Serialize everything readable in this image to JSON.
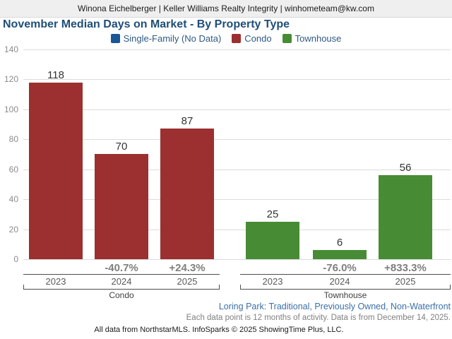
{
  "header": {
    "agent_line": "Winona Eichelberger | Keller Williams Realty Integrity | winhometeam@kw.com"
  },
  "title": "November Median Days on Market - By Property Type",
  "legend": [
    {
      "label": "Single-Family (No Data)",
      "color": "#1a5796"
    },
    {
      "label": "Condo",
      "color": "#9c2f2f"
    },
    {
      "label": "Townhouse",
      "color": "#478c35"
    }
  ],
  "chart_data": {
    "type": "bar",
    "title": "November Median Days on Market - By Property Type",
    "xlabel": "",
    "ylabel": "",
    "ylim": [
      0,
      140
    ],
    "ytick_step": 20,
    "grid": true,
    "legend_position": "top",
    "groups": [
      {
        "name": "Condo",
        "color": "#9c2f2f",
        "categories": [
          "2023",
          "2024",
          "2025"
        ],
        "values": [
          118,
          70,
          87
        ],
        "pct_change": [
          "",
          "-40.7%",
          "+24.3%"
        ]
      },
      {
        "name": "Townhouse",
        "color": "#478c35",
        "categories": [
          "2023",
          "2024",
          "2025"
        ],
        "values": [
          25,
          6,
          56
        ],
        "pct_change": [
          "",
          "-76.0%",
          "+833.3%"
        ]
      }
    ]
  },
  "footer": {
    "filter_line": "Loring Park: Traditional, Previously Owned, Non-Waterfront",
    "data_note": "Each data point is 12 months of activity. Data is from December 14, 2025.",
    "attribution": "All data from NorthstarMLS. InfoSparks © 2025 ShowingTime Plus, LLC."
  }
}
